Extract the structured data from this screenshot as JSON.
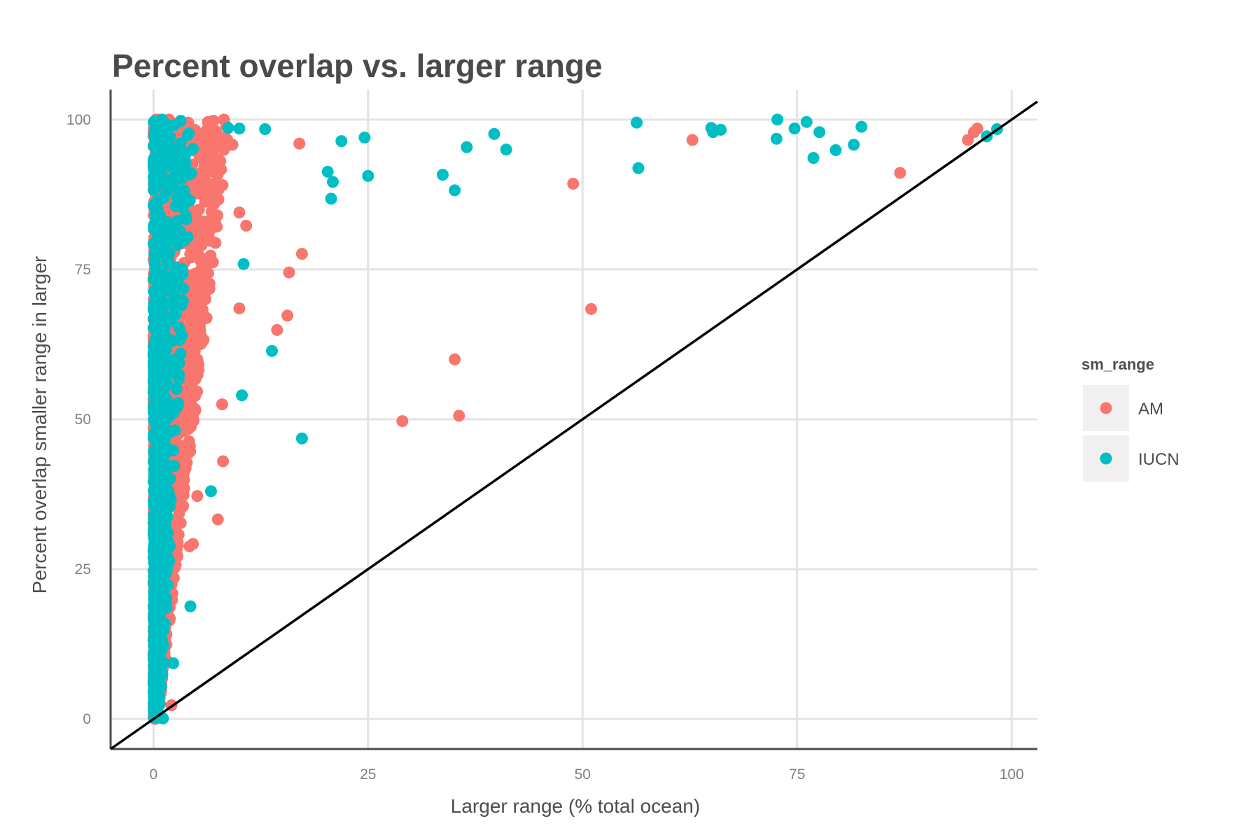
{
  "chart_data": {
    "type": "scatter",
    "title": "Percent overlap vs. larger range",
    "xlabel": "Larger range (% total ocean)",
    "ylabel": "Percent overlap smaller range in larger",
    "xlim": [
      -5,
      103
    ],
    "ylim": [
      -5,
      105
    ],
    "x_ticks": [
      0,
      25,
      50,
      75,
      100
    ],
    "y_ticks": [
      0,
      25,
      50,
      75,
      100
    ],
    "grid": true,
    "reference_line": {
      "type": "identity",
      "from": [
        -5,
        -5
      ],
      "to": [
        103,
        103
      ],
      "color": "#000000"
    },
    "legend": {
      "title": "sm_range",
      "position": "right",
      "entries": [
        {
          "label": "AM",
          "color": "#F8766D"
        },
        {
          "label": "IUCN",
          "color": "#00BFC4"
        }
      ]
    },
    "series": [
      {
        "name": "AM",
        "color": "#F8766D",
        "points": [
          [
            17,
            96
          ],
          [
            10,
            84.5
          ],
          [
            10.8,
            82.3
          ],
          [
            17.3,
            77.6
          ],
          [
            15.8,
            74.5
          ],
          [
            10,
            68.5
          ],
          [
            15.6,
            67.3
          ],
          [
            14.4,
            64.9
          ],
          [
            8.1,
            43
          ],
          [
            8,
            52.5
          ],
          [
            7.5,
            33.3
          ],
          [
            5.1,
            37.2
          ],
          [
            4.2,
            28.8
          ],
          [
            4.6,
            29.2
          ],
          [
            2.1,
            2.3
          ],
          [
            0.1,
            8.3
          ],
          [
            0.2,
            12
          ],
          [
            0.3,
            100
          ],
          [
            1.8,
            100
          ],
          [
            3.8,
            98
          ],
          [
            7,
            99.8
          ],
          [
            8.2,
            100
          ],
          [
            9.2,
            95.8
          ],
          [
            48.9,
            89.3
          ],
          [
            51,
            68.4
          ],
          [
            35.1,
            60
          ],
          [
            35.6,
            50.6
          ],
          [
            29,
            49.7
          ],
          [
            62.8,
            96.6
          ],
          [
            87,
            91.1
          ],
          [
            94.9,
            96.6
          ],
          [
            95.6,
            97.9
          ],
          [
            96,
            98.5
          ]
        ],
        "cluster": {
          "x_range": [
            0,
            9
          ],
          "y_range": [
            0,
            100
          ],
          "description": "dense band of points near x = 0 to 9"
        }
      },
      {
        "name": "IUCN",
        "color": "#00BFC4",
        "points": [
          [
            1,
            100
          ],
          [
            10,
            98.5
          ],
          [
            13,
            98.4
          ],
          [
            8.7,
            98.6
          ],
          [
            4,
            97.4
          ],
          [
            4.6,
            95.1
          ],
          [
            21.9,
            96.4
          ],
          [
            24.6,
            97
          ],
          [
            36.5,
            95.4
          ],
          [
            39.7,
            97.6
          ],
          [
            41.1,
            95
          ],
          [
            20.3,
            91.3
          ],
          [
            20.9,
            89.6
          ],
          [
            20.7,
            86.8
          ],
          [
            25,
            90.6
          ],
          [
            33.7,
            90.8
          ],
          [
            35.1,
            88.2
          ],
          [
            56.3,
            99.5
          ],
          [
            56.5,
            91.9
          ],
          [
            72.7,
            100
          ],
          [
            72.6,
            96.8
          ],
          [
            65,
            98.6
          ],
          [
            65.2,
            97.9
          ],
          [
            66.1,
            98.3
          ],
          [
            74.7,
            98.5
          ],
          [
            76.1,
            99.6
          ],
          [
            77.6,
            97.9
          ],
          [
            76.9,
            93.6
          ],
          [
            79.5,
            94.9
          ],
          [
            81.6,
            95.8
          ],
          [
            82.5,
            98.8
          ],
          [
            97.1,
            97.2
          ],
          [
            98.3,
            98.4
          ],
          [
            10.5,
            75.9
          ],
          [
            13.8,
            61.4
          ],
          [
            10.3,
            54
          ],
          [
            17.3,
            46.8
          ],
          [
            6.7,
            38
          ],
          [
            4.3,
            18.8
          ],
          [
            2.3,
            9.3
          ],
          [
            0.5,
            0.2
          ],
          [
            1.1,
            0.1
          ],
          [
            0.1,
            2.7
          ],
          [
            0.2,
            5
          ],
          [
            1,
            7.7
          ],
          [
            0,
            93
          ],
          [
            1,
            91.8
          ]
        ],
        "cluster": {
          "x_range": [
            0,
            5.5
          ],
          "y_range": [
            0,
            100
          ],
          "description": "dense band of points near x = 0 to 5"
        }
      }
    ]
  }
}
